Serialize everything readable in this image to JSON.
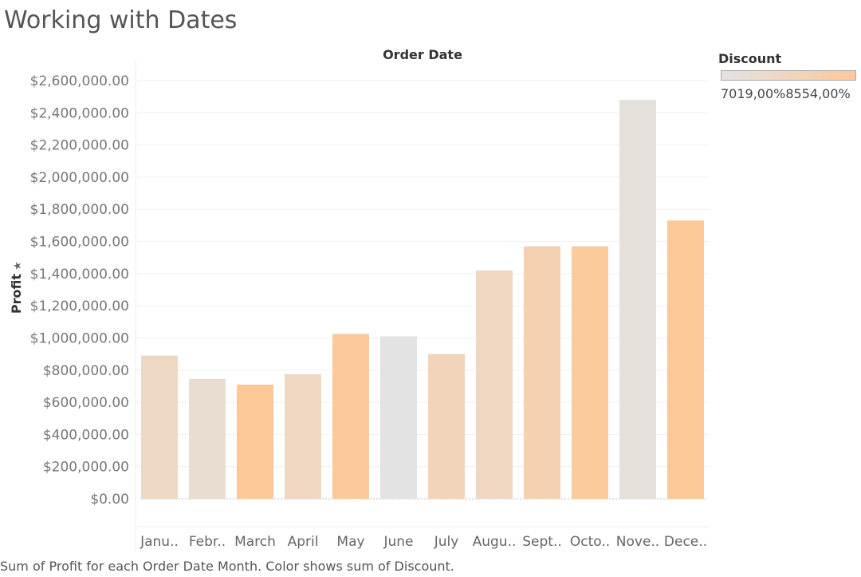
{
  "title": "Working with Dates",
  "caption": "Sum of Profit for each Order Date Month.  Color shows sum of Discount.",
  "legend": {
    "title": "Discount",
    "min_label": "7019,00%",
    "max_label": "8554,00%",
    "colors": [
      "#e3e3e3",
      "#fdc898"
    ]
  },
  "chart_data": {
    "type": "bar",
    "title": "",
    "xlabel": "Order Date",
    "ylabel": "Profit",
    "categories": [
      "Janu..",
      "Febr..",
      "March",
      "April",
      "May",
      "June",
      "July",
      "Augu..",
      "Sept..",
      "Octo..",
      "Nove..",
      "Dece.."
    ],
    "values": [
      890000,
      745000,
      710000,
      775000,
      1025000,
      1010000,
      900000,
      1420000,
      1570000,
      1570000,
      2480000,
      1730000
    ],
    "color_values": [
      7650,
      7400,
      8554,
      7700,
      8520,
      7019,
      7850,
      7700,
      8050,
      8460,
      7200,
      8554
    ],
    "ylim": [
      0,
      2600000
    ],
    "yticks": [
      0,
      200000,
      400000,
      600000,
      800000,
      1000000,
      1200000,
      1400000,
      1600000,
      1800000,
      2000000,
      2200000,
      2400000,
      2600000
    ],
    "ytick_labels": [
      "$0.00",
      "$200,000.00",
      "$400,000.00",
      "$600,000.00",
      "$800,000.00",
      "$1,000,000.00",
      "$1,200,000.00",
      "$1,400,000.00",
      "$1,600,000.00",
      "$1,800,000.00",
      "$2,000,000.00",
      "$2,200,000.00",
      "$2,400,000.00",
      "$2,600,000.00"
    ],
    "grid": true,
    "legend": "top-right"
  }
}
